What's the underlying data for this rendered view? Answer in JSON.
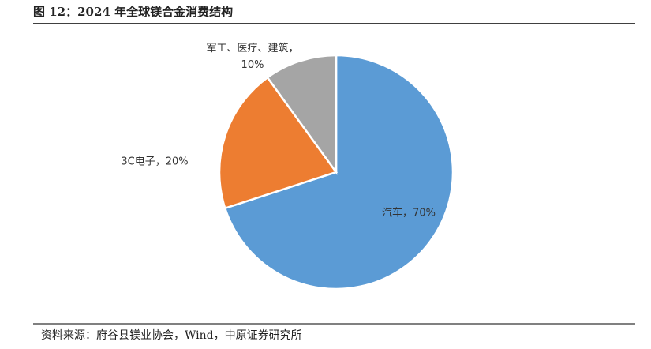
{
  "chart_data": {
    "type": "pie",
    "title": "图 12：2024 年全球镁合金消费结构",
    "source": "资料来源：府谷县镁业协会，Wind，中原证券研究所",
    "values": [
      70,
      20,
      10
    ],
    "value_labels": [
      "汽车，70%",
      "3C电子，20%",
      "军工、医疗、建筑，10%"
    ],
    "colors": [
      "#5b9bd5",
      "#ed7d31",
      "#a5a5a5"
    ]
  }
}
